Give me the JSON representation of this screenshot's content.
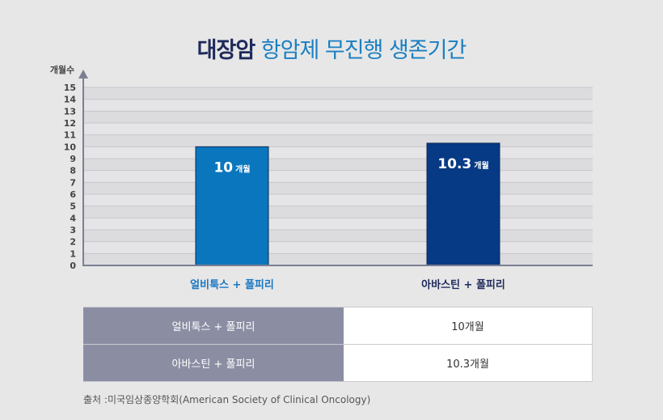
{
  "title_part1": "대장암",
  "title_part2": "항암제 무진행 생존기간",
  "chart_data": {
    "type": "bar",
    "title": "대장암 항암제 무진행 생존기간",
    "ylabel": "개월수",
    "ylim": [
      0,
      15
    ],
    "yticks": [
      0,
      1,
      2,
      3,
      4,
      5,
      6,
      7,
      8,
      9,
      10,
      11,
      12,
      13,
      14,
      15
    ],
    "categories": [
      "얼비툭스 + 폴피리",
      "아바스틴 + 폴피리"
    ],
    "values": [
      10,
      10.3
    ],
    "value_numbers": [
      "10",
      "10.3"
    ],
    "value_unit": "개월",
    "grid": true,
    "colors": [
      "#0a76bd",
      "#073a85"
    ],
    "category_label_colors": [
      "#1a77c0",
      "#1f2a5a"
    ]
  },
  "table": {
    "rows": [
      {
        "label": "얼비툭스 + 폴피리",
        "value": "10개월"
      },
      {
        "label": "아바스틴 + 폴피리",
        "value": "10.3개월"
      }
    ]
  },
  "source": "출처 :미국임상종양학회(American Society of Clinical Oncology)"
}
